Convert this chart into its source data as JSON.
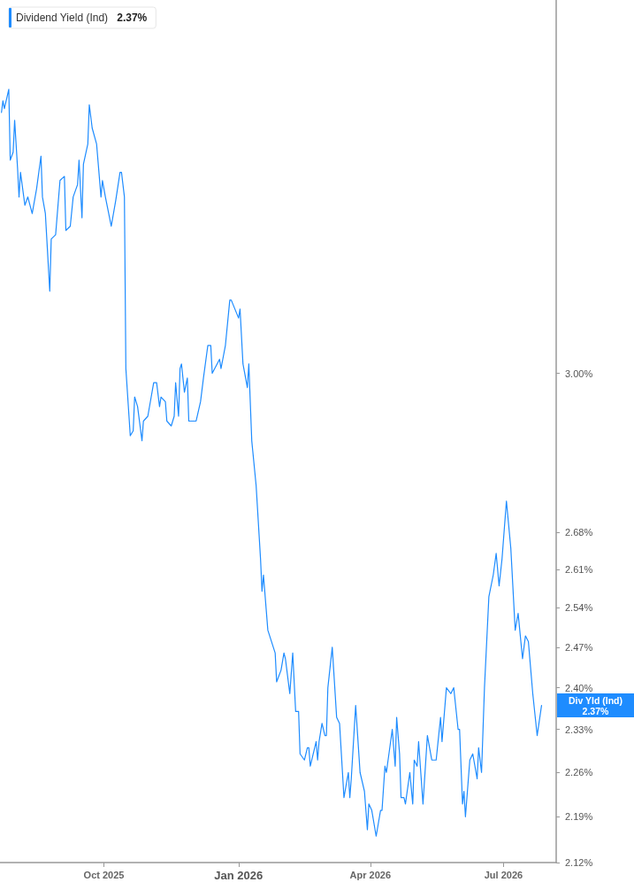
{
  "chart_data": {
    "type": "line",
    "x": [
      "2025-07-23",
      "2025-07-24",
      "2025-07-25",
      "2025-07-28",
      "2025-07-29",
      "2025-07-31",
      "2025-08-01",
      "2025-08-03",
      "2025-08-04",
      "2025-08-05",
      "2025-08-08",
      "2025-08-10",
      "2025-08-13",
      "2025-08-16",
      "2025-08-19",
      "2025-08-20",
      "2025-08-22",
      "2025-08-25",
      "2025-08-26",
      "2025-08-29",
      "2025-09-01",
      "2025-09-04",
      "2025-09-05",
      "2025-09-08",
      "2025-09-10",
      "2025-09-13",
      "2025-09-14",
      "2025-09-16",
      "2025-09-17",
      "2025-09-20",
      "2025-09-21",
      "2025-09-23",
      "2025-09-26",
      "2025-09-29",
      "2025-09-30",
      "2025-10-02",
      "2025-10-06",
      "2025-10-09",
      "2025-10-12",
      "2025-10-13",
      "2025-10-15",
      "2025-10-16",
      "2025-10-19",
      "2025-10-21",
      "2025-10-22",
      "2025-10-24",
      "2025-10-27",
      "2025-10-28",
      "2025-10-31",
      "2025-11-04",
      "2025-11-06",
      "2025-11-08",
      "2025-11-09",
      "2025-11-12",
      "2025-11-13",
      "2025-11-16",
      "2025-11-18",
      "2025-11-19",
      "2025-11-21",
      "2025-11-22",
      "2025-11-23",
      "2025-11-25",
      "2025-11-27",
      "2025-11-28",
      "2025-12-03",
      "2025-12-06",
      "2025-12-08",
      "2025-12-11",
      "2025-12-13",
      "2025-12-14",
      "2025-12-19",
      "2025-12-20",
      "2025-12-23",
      "2025-12-26",
      "2025-12-27",
      "2026-01-01",
      "2026-01-02",
      "2026-01-04",
      "2026-01-07",
      "2026-01-08",
      "2026-01-10",
      "2026-01-13",
      "2026-01-16",
      "2026-01-17",
      "2026-01-18",
      "2026-01-21",
      "2026-01-26",
      "2026-01-27",
      "2026-01-30",
      "2026-02-01",
      "2026-02-02",
      "2026-02-05",
      "2026-02-07",
      "2026-02-09",
      "2026-02-11",
      "2026-02-12",
      "2026-02-15",
      "2026-02-17",
      "2026-02-18",
      "2026-02-19",
      "2026-02-23",
      "2026-02-24",
      "2026-02-25",
      "2026-02-27",
      "2026-03-01",
      "2026-03-02",
      "2026-03-03",
      "2026-03-06",
      "2026-03-09",
      "2026-03-11",
      "2026-03-14",
      "2026-03-17",
      "2026-03-18",
      "2026-03-19",
      "2026-03-22",
      "2026-03-25",
      "2026-03-28",
      "2026-03-30",
      "2026-03-31",
      "2026-04-02",
      "2026-04-05",
      "2026-04-08",
      "2026-04-09",
      "2026-04-11",
      "2026-04-12",
      "2026-04-16",
      "2026-04-18",
      "2026-04-19",
      "2026-04-21",
      "2026-04-22",
      "2026-04-24",
      "2026-04-25",
      "2026-04-28",
      "2026-04-30",
      "2026-05-01",
      "2026-05-03",
      "2026-05-04",
      "2026-05-07",
      "2026-05-10",
      "2026-05-13",
      "2026-05-16",
      "2026-05-19",
      "2026-05-20",
      "2026-05-23",
      "2026-05-26",
      "2026-05-28",
      "2026-05-31",
      "2026-06-01",
      "2026-06-03",
      "2026-06-04",
      "2026-06-05",
      "2026-06-08",
      "2026-06-10",
      "2026-06-13",
      "2026-06-14",
      "2026-06-16",
      "2026-06-18",
      "2026-06-21",
      "2026-06-24",
      "2026-06-26",
      "2026-06-28",
      "2026-06-30",
      "2026-07-03",
      "2026-07-06",
      "2026-07-09",
      "2026-07-11",
      "2026-07-14",
      "2026-07-16",
      "2026-07-18",
      "2026-07-21",
      "2026-07-24",
      "2026-07-27"
    ],
    "series": [
      {
        "name": "Dividend Yield (Ind)",
        "color": "#1e8cff",
        "values": [
          3.61,
          3.64,
          3.62,
          3.67,
          3.49,
          3.51,
          3.59,
          3.47,
          3.4,
          3.46,
          3.38,
          3.4,
          3.36,
          3.42,
          3.5,
          3.4,
          3.36,
          3.18,
          3.3,
          3.31,
          3.44,
          3.45,
          3.32,
          3.33,
          3.4,
          3.43,
          3.49,
          3.35,
          3.48,
          3.53,
          3.63,
          3.57,
          3.53,
          3.4,
          3.44,
          3.4,
          3.33,
          3.39,
          3.46,
          3.46,
          3.4,
          3.01,
          2.87,
          2.88,
          2.95,
          2.93,
          2.86,
          2.9,
          2.91,
          2.98,
          2.98,
          2.93,
          2.95,
          2.94,
          2.9,
          2.89,
          2.91,
          2.98,
          2.91,
          3.01,
          3.02,
          2.96,
          2.99,
          2.9,
          2.9,
          2.94,
          2.99,
          3.06,
          3.06,
          3.0,
          3.03,
          3.01,
          3.06,
          3.16,
          3.16,
          3.12,
          3.14,
          3.02,
          2.97,
          3.02,
          2.86,
          2.77,
          2.63,
          2.57,
          2.6,
          2.5,
          2.46,
          2.41,
          2.43,
          2.46,
          2.45,
          2.39,
          2.46,
          2.36,
          2.36,
          2.29,
          2.28,
          2.3,
          2.3,
          2.27,
          2.31,
          2.28,
          2.31,
          2.34,
          2.32,
          2.32,
          2.4,
          2.47,
          2.35,
          2.34,
          2.22,
          2.26,
          2.22,
          2.25,
          2.37,
          2.26,
          2.23,
          2.17,
          2.21,
          2.2,
          2.16,
          2.2,
          2.2,
          2.27,
          2.26,
          2.33,
          2.27,
          2.35,
          2.29,
          2.22,
          2.22,
          2.21,
          2.26,
          2.21,
          2.28,
          2.27,
          2.31,
          2.21,
          2.32,
          2.28,
          2.28,
          2.35,
          2.31,
          2.4,
          2.39,
          2.4,
          2.33,
          2.33,
          2.21,
          2.23,
          2.19,
          2.28,
          2.29,
          2.25,
          2.3,
          2.26,
          2.4,
          2.56,
          2.6,
          2.64,
          2.58,
          2.63,
          2.74,
          2.65,
          2.5,
          2.53,
          2.45,
          2.49,
          2.48,
          2.39,
          2.32,
          2.37
        ]
      }
    ],
    "xlim": [
      "2025-07-22",
      "2026-08-06"
    ],
    "xticks": [
      {
        "value": "2025-10-01",
        "label": "Oct 2025"
      },
      {
        "value": "2026-01-01",
        "label": "Jan 2026"
      },
      {
        "value": "2026-04-01",
        "label": "Apr 2026"
      },
      {
        "value": "2026-07-01",
        "label": "Jul 2026"
      }
    ],
    "ylim": [
      2.12,
      3.91
    ],
    "yticks": [
      {
        "value": 2.12,
        "label": "2.12%"
      },
      {
        "value": 2.19,
        "label": "2.19%"
      },
      {
        "value": 2.26,
        "label": "2.26%"
      },
      {
        "value": 2.33,
        "label": "2.33%"
      },
      {
        "value": 2.4,
        "label": "2.40%"
      },
      {
        "value": 2.47,
        "label": "2.47%"
      },
      {
        "value": 2.54,
        "label": "2.54%"
      },
      {
        "value": 2.61,
        "label": "2.61%"
      },
      {
        "value": 2.68,
        "label": "2.68%"
      },
      {
        "value": 3.0,
        "label": "3.00%"
      }
    ],
    "log": "y",
    "legend": "top left",
    "annotations": [
      "2.37%",
      "Div Yld (Ind)\n2.37%"
    ]
  }
}
